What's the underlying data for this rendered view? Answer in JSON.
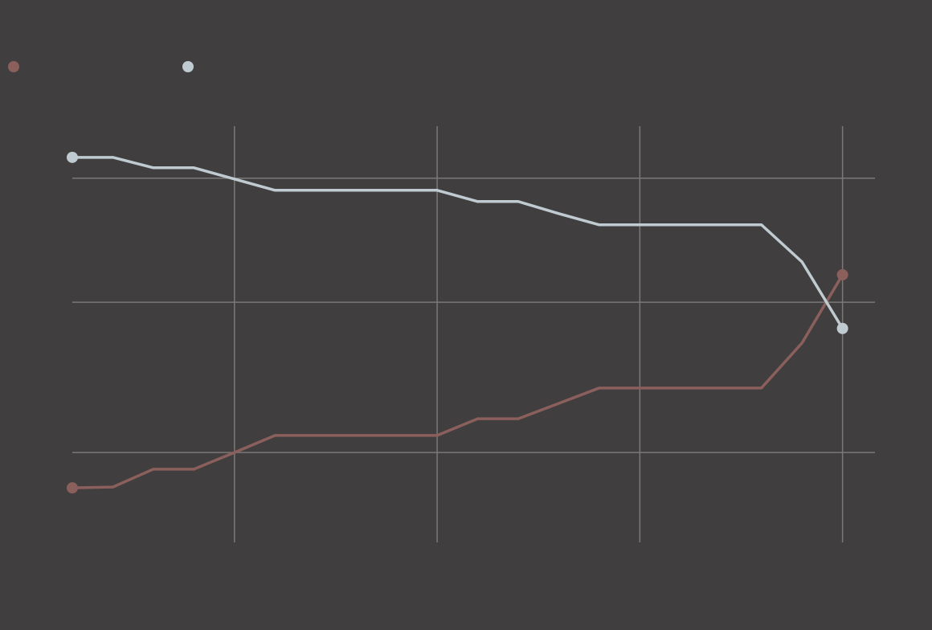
{
  "chart_data": {
    "type": "line",
    "x": [
      0,
      1,
      2,
      3,
      4,
      5,
      6,
      7,
      8,
      9,
      10,
      11,
      12,
      13,
      14,
      15,
      16,
      17,
      18,
      19
    ],
    "series": [
      {
        "color": "#8a5f5c",
        "values": [
          13.1,
          13.3,
          17.6,
          17.6,
          21.6,
          25.7,
          25.7,
          25.7,
          25.7,
          25.7,
          29.7,
          29.7,
          33.4,
          37.1,
          37.1,
          37.1,
          37.1,
          37.1,
          47.9,
          64.3
        ]
      },
      {
        "color": "#bfcbd0",
        "values": [
          92.5,
          92.5,
          90.0,
          90.0,
          87.3,
          84.6,
          84.6,
          84.6,
          84.6,
          84.6,
          81.9,
          81.9,
          79.0,
          76.3,
          76.3,
          76.3,
          76.3,
          76.3,
          67.4,
          51.4
        ]
      }
    ],
    "xlim": [
      0,
      19.8
    ],
    "xticks": [
      4,
      9,
      14,
      19
    ],
    "ylim": [
      0,
      100
    ],
    "yticks": [
      21.6,
      57.7,
      87.5
    ],
    "grid": true
  }
}
